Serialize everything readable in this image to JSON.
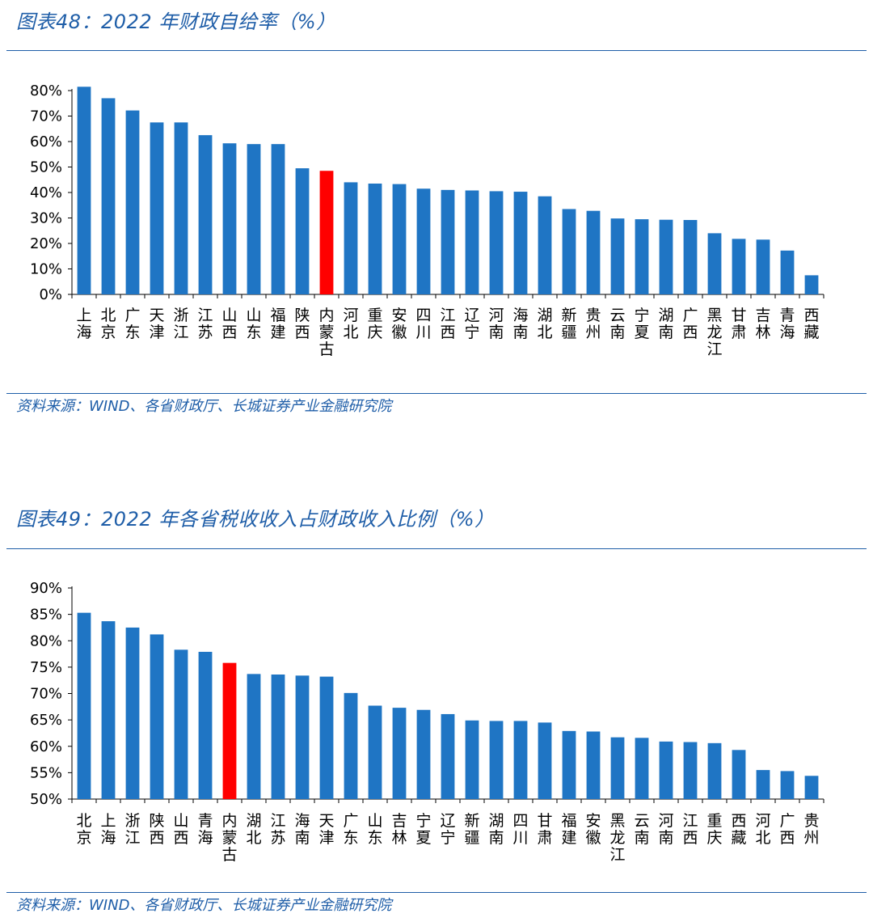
{
  "chart_data": [
    {
      "type": "bar",
      "title": "图表48：2022 年财政自给率（%）",
      "source": "资料来源：WIND、各省财政厅、长城证券产业金融研究院",
      "xlabel": "",
      "ylabel": "",
      "ylim": [
        0,
        85
      ],
      "yticks": [
        "0%",
        "10%",
        "20%",
        "30%",
        "40%",
        "50%",
        "60%",
        "70%",
        "80%"
      ],
      "ytick_values": [
        0,
        10,
        20,
        30,
        40,
        50,
        60,
        70,
        80
      ],
      "highlight": "内蒙古",
      "categories": [
        "上海",
        "北京",
        "广东",
        "天津",
        "浙江",
        "江苏",
        "山西",
        "山东",
        "福建",
        "陕西",
        "内蒙古",
        "河北",
        "重庆",
        "安徽",
        "四川",
        "江西",
        "辽宁",
        "河南",
        "海南",
        "湖北",
        "新疆",
        "贵州",
        "云南",
        "宁夏",
        "湖南",
        "广西",
        "黑龙江",
        "甘肃",
        "吉林",
        "青海",
        "西藏"
      ],
      "values": [
        81.5,
        77,
        72.2,
        67.5,
        67.5,
        62.5,
        59.3,
        59,
        59,
        49.5,
        48.5,
        44,
        43.5,
        43.3,
        41.5,
        41,
        40.8,
        40.5,
        40.3,
        38.5,
        33.5,
        32.8,
        29.8,
        29.5,
        29.3,
        29.2,
        24,
        21.8,
        21.5,
        17.2,
        7.5
      ]
    },
    {
      "type": "bar",
      "title": "图表49：2022 年各省税收收入占财政收入比例（%）",
      "source": "资料来源：WIND、各省财政厅、长城证券产业金融研究院",
      "xlabel": "",
      "ylabel": "",
      "ylim": [
        50,
        90
      ],
      "yticks": [
        "50%",
        "55%",
        "60%",
        "65%",
        "70%",
        "75%",
        "80%",
        "85%",
        "90%"
      ],
      "ytick_values": [
        50,
        55,
        60,
        65,
        70,
        75,
        80,
        85,
        90
      ],
      "highlight": "内蒙古",
      "categories": [
        "北京",
        "上海",
        "浙江",
        "陕西",
        "山西",
        "青海",
        "内蒙古",
        "湖北",
        "江苏",
        "海南",
        "天津",
        "广东",
        "山东",
        "吉林",
        "宁夏",
        "辽宁",
        "新疆",
        "湖南",
        "四川",
        "甘肃",
        "福建",
        "安徽",
        "黑龙江",
        "云南",
        "河南",
        "江西",
        "重庆",
        "西藏",
        "河北",
        "广西",
        "贵州"
      ],
      "values": [
        85.3,
        83.7,
        82.5,
        81.2,
        78.3,
        77.9,
        75.8,
        73.7,
        73.6,
        73.4,
        73.2,
        70.1,
        67.7,
        67.3,
        66.9,
        66.1,
        64.9,
        64.8,
        64.8,
        64.5,
        62.9,
        62.8,
        61.7,
        61.6,
        60.9,
        60.8,
        60.6,
        59.3,
        55.5,
        55.3,
        54.4
      ]
    }
  ],
  "colors": {
    "bar": "#1f75c4",
    "highlight": "#ff0000",
    "title": "#1f5ea8",
    "axis": "#000000"
  }
}
